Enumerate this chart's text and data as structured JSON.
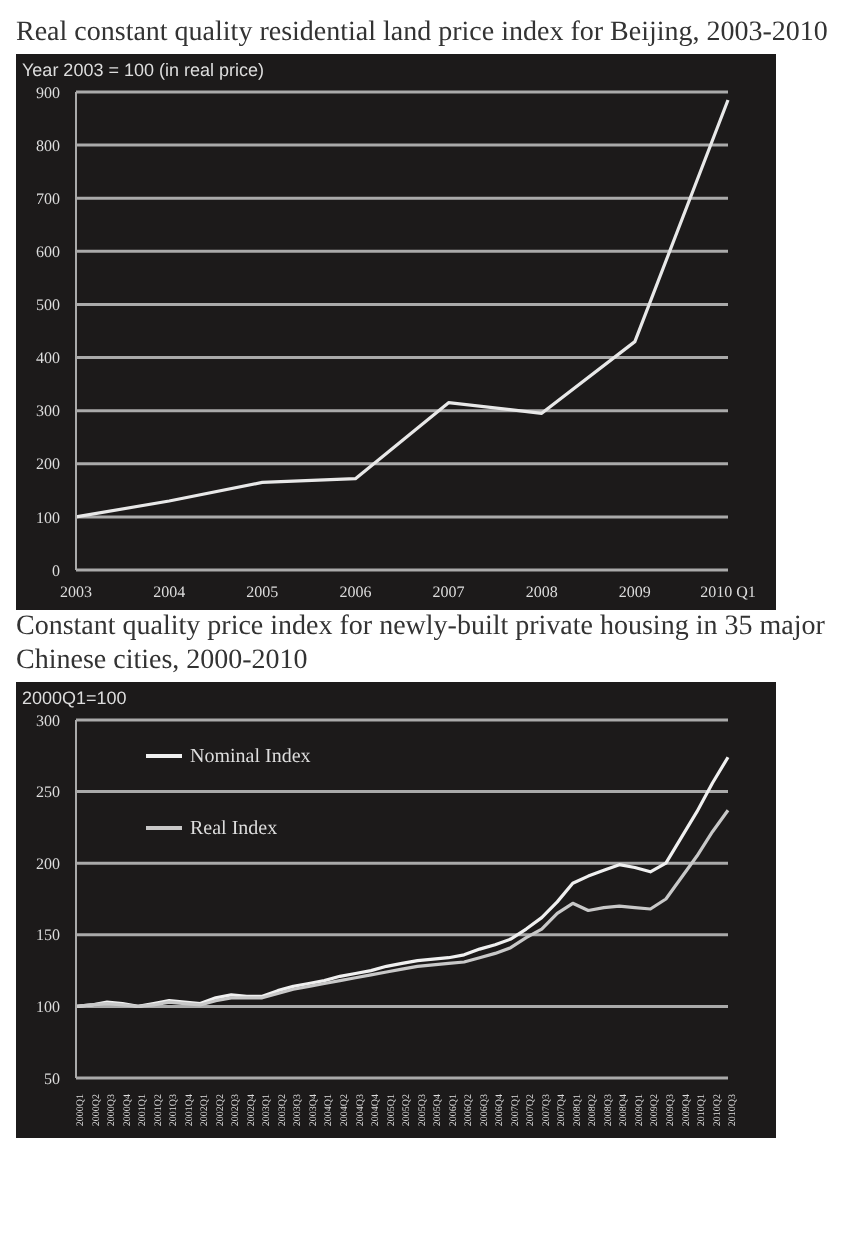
{
  "chart_data": [
    {
      "type": "line",
      "title": "Real constant quality residential land price index for Beijing, 2003-2010",
      "ylabel": "Year 2003 = 100 (in real price)",
      "categories": [
        "2003",
        "2004",
        "2005",
        "2006",
        "2007",
        "2008",
        "2009",
        "2010 Q1"
      ],
      "series": [
        {
          "color": "#e8e8e8",
          "values": [
            100,
            130,
            165,
            172,
            315,
            295,
            430,
            885
          ]
        }
      ],
      "ylim": [
        0,
        900
      ],
      "yticks": [
        0,
        100,
        200,
        300,
        400,
        500,
        600,
        700,
        800,
        900
      ],
      "grid": "y",
      "legend": false,
      "marker": "none",
      "line_style": "solid"
    },
    {
      "type": "line",
      "title": "Constant quality price index for newly-built private housing in 35 major Chinese cities, 2000-2010",
      "ylabel": "2000Q1=100",
      "categories": [
        "2000Q1",
        "2000Q2",
        "2000Q3",
        "2000Q4",
        "2001Q1",
        "2001Q2",
        "2001Q3",
        "2001Q4",
        "2002Q1",
        "2002Q2",
        "2002Q3",
        "2002Q4",
        "2003Q1",
        "2003Q2",
        "2003Q3",
        "2003Q4",
        "2004Q1",
        "2004Q2",
        "2004Q3",
        "2004Q4",
        "2005Q1",
        "2005Q2",
        "2005Q3",
        "2005Q4",
        "2006Q1",
        "2006Q2",
        "2006Q3",
        "2006Q4",
        "2007Q1",
        "2007Q2",
        "2007Q3",
        "2007Q4",
        "2008Q1",
        "2008Q2",
        "2008Q3",
        "2008Q4",
        "2009Q1",
        "2009Q2",
        "2009Q3",
        "2009Q4",
        "2010Q1",
        "2010Q2",
        "2010Q3"
      ],
      "series": [
        {
          "name": "Nominal Index",
          "color": "#f0f0f0",
          "values": [
            100,
            101,
            103,
            102,
            100,
            102,
            104,
            103,
            102,
            106,
            108,
            107,
            107,
            111,
            114,
            116,
            118,
            121,
            123,
            125,
            128,
            130,
            132,
            133,
            134,
            136,
            140,
            143,
            147,
            154,
            162,
            173,
            186,
            191,
            195,
            199,
            197,
            194,
            200,
            218,
            236,
            256,
            274
          ]
        },
        {
          "name": "Real Index",
          "color": "#c8c8c8",
          "values": [
            100,
            101,
            102,
            101,
            100,
            101,
            103,
            102,
            101,
            104,
            106,
            106,
            106,
            109,
            112,
            114,
            116,
            118,
            120,
            122,
            124,
            126,
            128,
            129,
            130,
            131,
            134,
            137,
            141,
            148,
            154,
            165,
            172,
            167,
            169,
            170,
            169,
            168,
            175,
            190,
            205,
            222,
            237
          ]
        }
      ],
      "ylim": [
        50,
        300
      ],
      "yticks": [
        50,
        100,
        150,
        200,
        250,
        300
      ],
      "grid": "y",
      "legend": "top left",
      "marker": "none",
      "line_style": "solid"
    }
  ]
}
